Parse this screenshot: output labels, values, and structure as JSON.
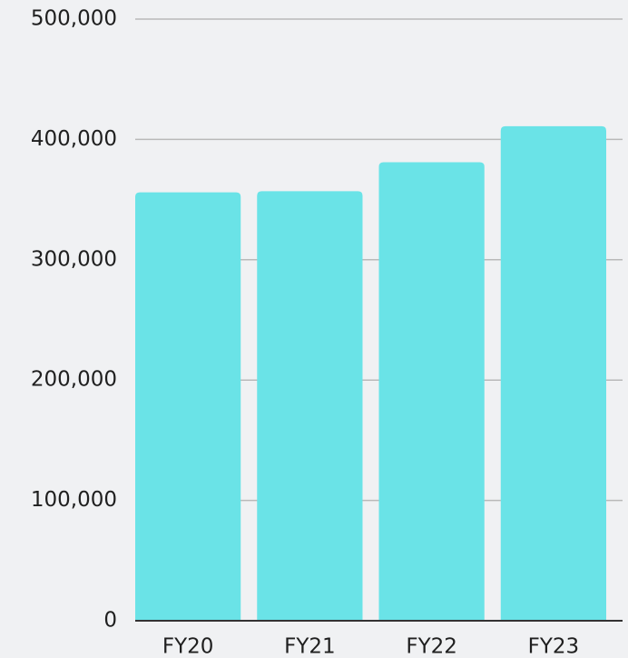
{
  "chart_data": {
    "type": "bar",
    "title": "",
    "xlabel": "",
    "ylabel": "",
    "categories": [
      "FY20",
      "FY21",
      "FY22",
      "FY23"
    ],
    "values": [
      356000,
      357000,
      381000,
      411000
    ],
    "ylim": [
      0,
      500000
    ],
    "y_ticks": [
      0,
      100000,
      200000,
      300000,
      400000,
      500000
    ],
    "y_tick_labels": [
      "0",
      "100,000",
      "200,000",
      "300,000",
      "400,000",
      "500,000"
    ],
    "grid": true,
    "legend": "none",
    "colors": {
      "bar": "#6ae3e7",
      "grid": "#b9b9b9",
      "axis": "#333333",
      "text": "#1f1f1f",
      "background": "#f0f1f3"
    }
  }
}
